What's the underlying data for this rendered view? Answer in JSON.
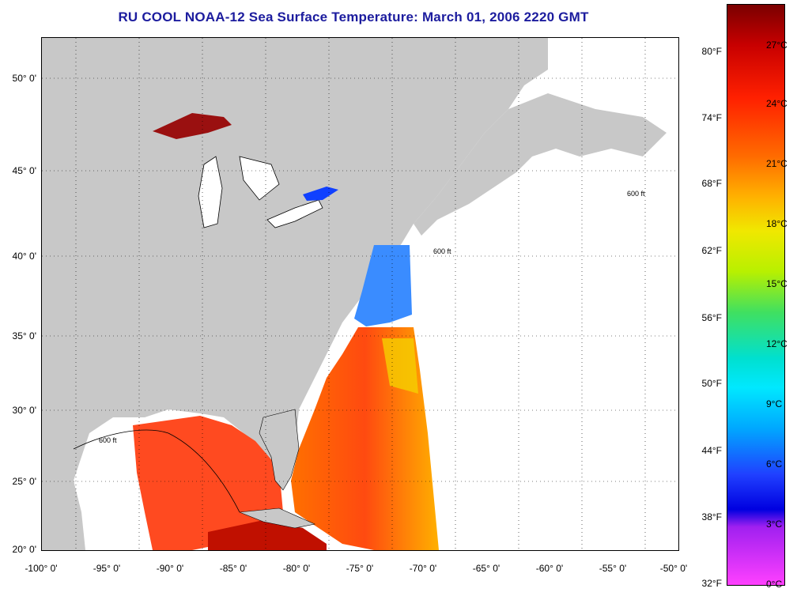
{
  "title": "RU COOL  NOAA-12  Sea Surface Temperature:  March 01, 2006 2220 GMT",
  "map": {
    "lat_labels": [
      "50° 0'",
      "45° 0'",
      "40° 0'",
      "35° 0'",
      "30° 0'",
      "25° 0'",
      "20° 0'"
    ],
    "lon_labels": [
      "-100° 0'",
      "-95° 0'",
      "-90° 0'",
      "-85° 0'",
      "-80° 0'",
      "-75° 0'",
      "-70° 0'",
      "-65° 0'",
      "-60° 0'",
      "-55° 0'",
      "-50° 0'"
    ],
    "contour_label": "600 ft",
    "colors": {
      "land": "#c8c8c8",
      "water_no_data": "#ffffff",
      "grid": "#000000",
      "coast": "#000000"
    }
  },
  "colorbar": {
    "fahrenheit_labels": [
      "80°F",
      "74°F",
      "68°F",
      "62°F",
      "56°F",
      "50°F",
      "44°F",
      "38°F",
      "32°F"
    ],
    "celsius_labels": [
      "27°C",
      "24°C",
      "21°C",
      "18°C",
      "15°C",
      "12°C",
      "9°C",
      "6°C",
      "3°C",
      "0°C"
    ],
    "range_c": [
      0,
      28
    ],
    "gradient": [
      "#7a0000",
      "#c80000",
      "#ff2000",
      "#ff6a00",
      "#ffb000",
      "#f0e800",
      "#b8f000",
      "#40e060",
      "#00e0d0",
      "#00e8ff",
      "#00a8ff",
      "#2040ff",
      "#0000e0",
      "#a020f0",
      "#ff40ff"
    ]
  }
}
